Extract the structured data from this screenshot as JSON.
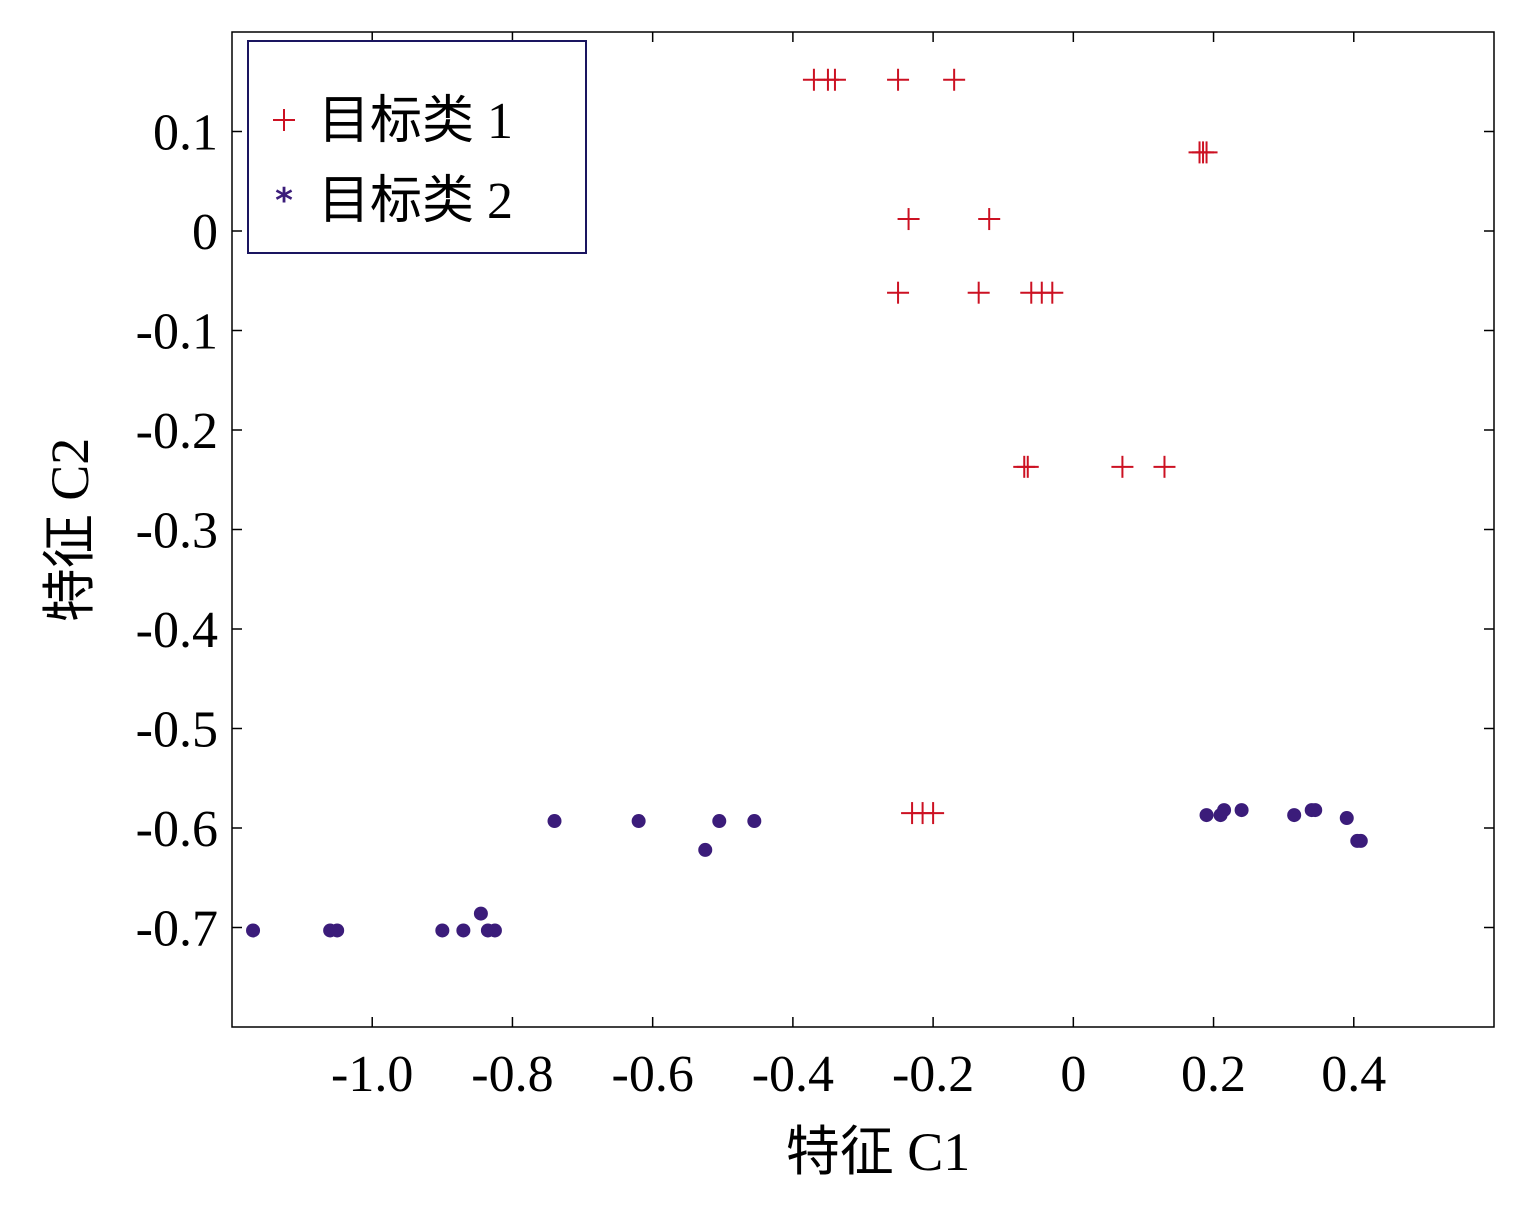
{
  "chart_data": {
    "type": "scatter",
    "title": "",
    "xlabel": "特征 C1",
    "ylabel": "特征 C2",
    "xlim": [
      -1.2,
      0.6
    ],
    "ylim": [
      -0.8,
      0.2
    ],
    "xticks": [
      -1.0,
      -0.8,
      -0.6,
      -0.4,
      -0.2,
      0,
      0.2,
      0.4
    ],
    "xtick_labels": [
      "-1.0",
      "-0.8",
      "-0.6",
      "-0.4",
      "-0.2",
      "0",
      "0.2",
      "0.4"
    ],
    "yticks": [
      0.1,
      0,
      -0.1,
      -0.2,
      -0.3,
      -0.4,
      -0.5,
      -0.6,
      -0.7
    ],
    "ytick_labels": [
      "0.1",
      "0",
      "-0.1",
      "-0.2",
      "-0.3",
      "-0.4",
      "-0.5",
      "-0.6",
      "-0.7"
    ],
    "grid": false,
    "legend_position": "top-left",
    "series": [
      {
        "name": "目标类 1",
        "marker": "plus",
        "color": "#cc1122",
        "x": [
          -0.37,
          -0.35,
          -0.34,
          -0.25,
          -0.17,
          0.18,
          0.185,
          0.19,
          -0.235,
          -0.12,
          -0.25,
          -0.135,
          -0.06,
          -0.045,
          -0.03,
          -0.07,
          -0.065,
          0.07,
          0.13,
          -0.23,
          -0.215,
          -0.2
        ],
        "y": [
          0.152,
          0.152,
          0.152,
          0.152,
          0.152,
          0.079,
          0.079,
          0.079,
          0.012,
          0.012,
          -0.062,
          -0.062,
          -0.062,
          -0.062,
          -0.062,
          -0.237,
          -0.237,
          -0.237,
          -0.237,
          -0.585,
          -0.585,
          -0.585
        ]
      },
      {
        "name": "目标类 2",
        "marker": "asterisk",
        "color": "#3b1c7a",
        "x": [
          -1.17,
          -1.06,
          -1.05,
          -0.9,
          -0.87,
          -0.845,
          -0.835,
          -0.825,
          -0.74,
          -0.62,
          -0.525,
          -0.505,
          -0.455,
          0.19,
          0.21,
          0.215,
          0.24,
          0.315,
          0.34,
          0.345,
          0.39,
          0.405,
          0.41
        ],
        "y": [
          -0.703,
          -0.703,
          -0.703,
          -0.703,
          -0.703,
          -0.686,
          -0.703,
          -0.703,
          -0.593,
          -0.593,
          -0.622,
          -0.593,
          -0.593,
          -0.587,
          -0.587,
          -0.582,
          -0.582,
          -0.587,
          -0.582,
          -0.582,
          -0.59,
          -0.613,
          -0.613
        ]
      }
    ]
  }
}
